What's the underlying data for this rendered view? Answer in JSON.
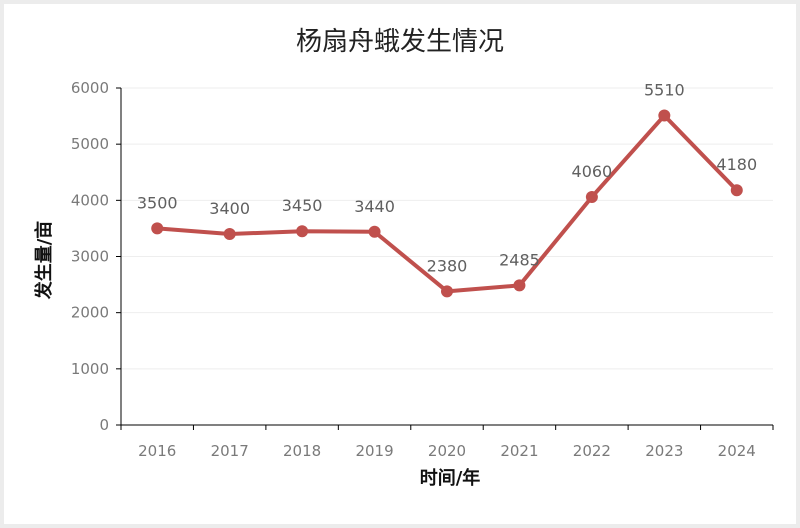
{
  "chart_data": {
    "type": "line",
    "title": "杨扇舟蛾发生情况",
    "xlabel": "时间/年",
    "ylabel": "发生量/亩",
    "categories": [
      "2016",
      "2017",
      "2018",
      "2019",
      "2020",
      "2021",
      "2022",
      "2023",
      "2024"
    ],
    "series": [
      {
        "values": [
          3500,
          3400,
          3450,
          3440,
          2380,
          2485,
          4060,
          5510,
          4180
        ],
        "color": "#c0504d"
      }
    ],
    "ylim": [
      0,
      6000
    ],
    "yticks": [
      "0",
      "1000",
      "2000",
      "3000",
      "4000",
      "5000",
      "6000"
    ],
    "grid": true,
    "legend": "none"
  }
}
